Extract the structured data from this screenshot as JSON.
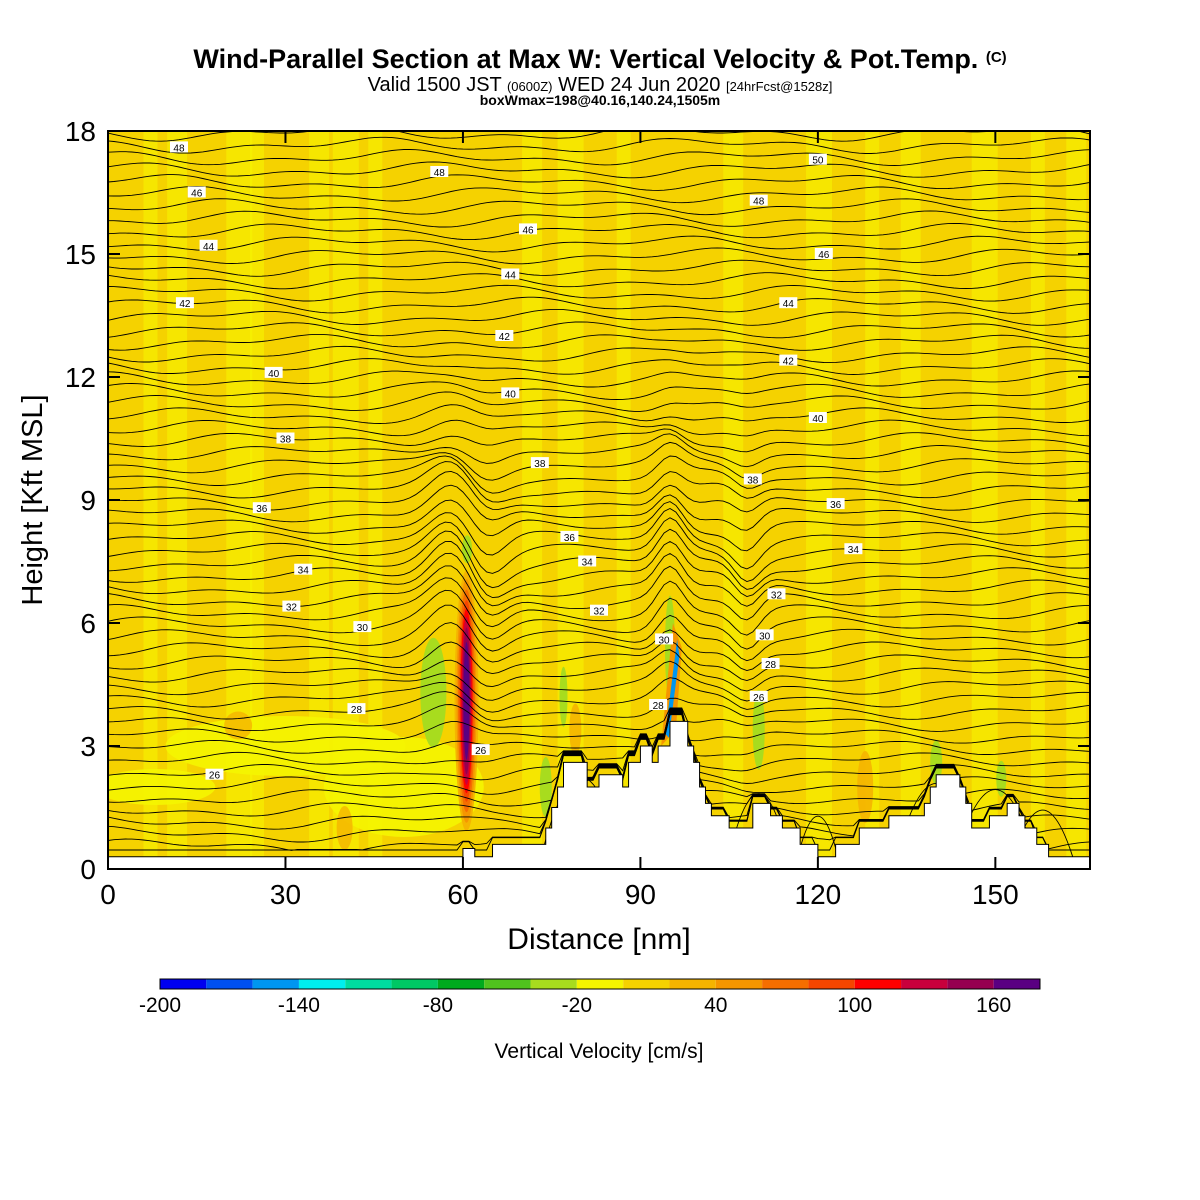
{
  "title": {
    "main": "Wind-Parallel Section at Max W: Vertical Velocity & Pot.Temp.",
    "copyright": "(C)",
    "valid_prefix": "Valid 1500 JST",
    "valid_utc": "(0600Z)",
    "valid_date": "WED 24 Jun 2020",
    "forecast": "[24hrFcst@1528z]",
    "box": "boxWmax=198@40.16,140.24,1505m"
  },
  "chart_data": {
    "type": "heatmap",
    "xlabel": "Distance [nm]",
    "ylabel": "Height [Kft MSL]",
    "xlim": [
      0,
      166
    ],
    "ylim": [
      0,
      18
    ],
    "xticks": [
      0,
      30,
      60,
      90,
      120,
      150
    ],
    "yticks": [
      0,
      3,
      6,
      9,
      12,
      15,
      18
    ],
    "colorbar": {
      "label": "Vertical Velocity [cm/s]",
      "min": -200,
      "max": 180,
      "step": 20,
      "tick_values": [
        -200,
        -140,
        -80,
        -20,
        40,
        100,
        160
      ],
      "colors": [
        "#0000f0",
        "#0050f0",
        "#0096f0",
        "#00eeee",
        "#00dca0",
        "#00c864",
        "#00aa1e",
        "#50c31e",
        "#a8dc1e",
        "#f5f500",
        "#f5d200",
        "#f5b400",
        "#f59600",
        "#f56e00",
        "#f54600",
        "#ff0000",
        "#c8003c",
        "#960050",
        "#5a0082"
      ]
    },
    "field_background": "#f5d200",
    "terrain_profile": [
      [
        0,
        0.3
      ],
      [
        58,
        0.3
      ],
      [
        60,
        0.5
      ],
      [
        62,
        0.3
      ],
      [
        64,
        0.3
      ],
      [
        65,
        0.6
      ],
      [
        72,
        0.6
      ],
      [
        74,
        1.0
      ],
      [
        75,
        1.5
      ],
      [
        76,
        2.0
      ],
      [
        77,
        2.6
      ],
      [
        80,
        2.6
      ],
      [
        81,
        2.0
      ],
      [
        82,
        2.0
      ],
      [
        83,
        2.3
      ],
      [
        86,
        2.3
      ],
      [
        87,
        2.0
      ],
      [
        88,
        2.6
      ],
      [
        90,
        3.0
      ],
      [
        92,
        2.6
      ],
      [
        93,
        3.0
      ],
      [
        95,
        3.6
      ],
      [
        97,
        3.6
      ],
      [
        98,
        3.0
      ],
      [
        99,
        2.6
      ],
      [
        100,
        2.0
      ],
      [
        101,
        1.6
      ],
      [
        102,
        1.3
      ],
      [
        104,
        1.3
      ],
      [
        105,
        1.0
      ],
      [
        108,
        1.0
      ],
      [
        109,
        1.6
      ],
      [
        111,
        1.6
      ],
      [
        112,
        1.3
      ],
      [
        113,
        1.3
      ],
      [
        114,
        1.0
      ],
      [
        116,
        1.0
      ],
      [
        117,
        0.6
      ],
      [
        119,
        0.6
      ],
      [
        120,
        0.3
      ],
      [
        123,
        0.6
      ],
      [
        126,
        0.6
      ],
      [
        127,
        1.0
      ],
      [
        131,
        1.0
      ],
      [
        132,
        1.3
      ],
      [
        137,
        1.3
      ],
      [
        138,
        1.6
      ],
      [
        139,
        2.0
      ],
      [
        140,
        2.3
      ],
      [
        143,
        2.3
      ],
      [
        144,
        2.0
      ],
      [
        145,
        1.6
      ],
      [
        146,
        1.0
      ],
      [
        148,
        1.0
      ],
      [
        149,
        1.3
      ],
      [
        151,
        1.3
      ],
      [
        152,
        1.6
      ],
      [
        154,
        1.3
      ],
      [
        155,
        1.0
      ],
      [
        156,
        1.0
      ],
      [
        157,
        0.6
      ],
      [
        158,
        0.6
      ],
      [
        159,
        0.3
      ],
      [
        166,
        0.3
      ]
    ],
    "isentrope_labels": [
      {
        "x": 12,
        "y": 17.6,
        "text": "48"
      },
      {
        "x": 56,
        "y": 17.0,
        "text": "48"
      },
      {
        "x": 120,
        "y": 17.3,
        "text": "50"
      },
      {
        "x": 15,
        "y": 16.5,
        "text": "46"
      },
      {
        "x": 71,
        "y": 15.6,
        "text": "46"
      },
      {
        "x": 110,
        "y": 16.3,
        "text": "48"
      },
      {
        "x": 17,
        "y": 15.2,
        "text": "44"
      },
      {
        "x": 68,
        "y": 14.5,
        "text": "44"
      },
      {
        "x": 121,
        "y": 15.0,
        "text": "46"
      },
      {
        "x": 13,
        "y": 13.8,
        "text": "42"
      },
      {
        "x": 67,
        "y": 13.0,
        "text": "42"
      },
      {
        "x": 115,
        "y": 13.8,
        "text": "44"
      },
      {
        "x": 28,
        "y": 12.1,
        "text": "40"
      },
      {
        "x": 68,
        "y": 11.6,
        "text": "40"
      },
      {
        "x": 115,
        "y": 12.4,
        "text": "42"
      },
      {
        "x": 30,
        "y": 10.5,
        "text": "38"
      },
      {
        "x": 73,
        "y": 9.9,
        "text": "38"
      },
      {
        "x": 120,
        "y": 11.0,
        "text": "40"
      },
      {
        "x": 26,
        "y": 8.8,
        "text": "36"
      },
      {
        "x": 78,
        "y": 8.1,
        "text": "36"
      },
      {
        "x": 109,
        "y": 9.5,
        "text": "38"
      },
      {
        "x": 33,
        "y": 7.3,
        "text": "34"
      },
      {
        "x": 81,
        "y": 7.5,
        "text": "34"
      },
      {
        "x": 123,
        "y": 8.9,
        "text": "36"
      },
      {
        "x": 31,
        "y": 6.4,
        "text": "32"
      },
      {
        "x": 83,
        "y": 6.3,
        "text": "32"
      },
      {
        "x": 126,
        "y": 7.8,
        "text": "34"
      },
      {
        "x": 43,
        "y": 5.9,
        "text": "30"
      },
      {
        "x": 94,
        "y": 5.6,
        "text": "30"
      },
      {
        "x": 113,
        "y": 6.7,
        "text": "32"
      },
      {
        "x": 42,
        "y": 3.9,
        "text": "28"
      },
      {
        "x": 93,
        "y": 4.0,
        "text": "28"
      },
      {
        "x": 111,
        "y": 5.7,
        "text": "30"
      },
      {
        "x": 18,
        "y": 2.3,
        "text": "26"
      },
      {
        "x": 63,
        "y": 2.9,
        "text": "26"
      },
      {
        "x": 112,
        "y": 5.0,
        "text": "28"
      },
      {
        "x": 110,
        "y": 4.2,
        "text": "26"
      }
    ]
  }
}
